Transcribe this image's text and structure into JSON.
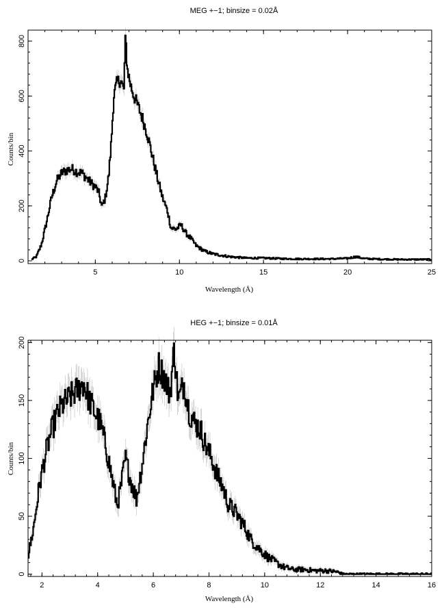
{
  "chart_data": [
    {
      "type": "line",
      "title": "MEG +−1; binsize = 0.02Å",
      "xlabel": "Wavelength (Å)",
      "ylabel": "Counts/bin",
      "xlim": [
        1.0,
        25.0
      ],
      "ylim": [
        -10,
        840
      ],
      "xticks": [
        5,
        10,
        15,
        20,
        25
      ],
      "yticks": [
        0,
        200,
        400,
        600,
        800
      ],
      "grid": false,
      "line_color": "#000000",
      "error_color": "#bbbbbb",
      "series": [
        {
          "x": [
            1.2,
            1.5,
            1.8,
            2.1,
            2.4,
            2.7,
            3.0,
            3.3,
            3.6,
            3.9,
            4.2,
            4.5,
            4.8,
            5.0,
            5.2,
            5.4,
            5.6,
            5.8,
            5.95,
            6.1,
            6.3,
            6.5,
            6.7,
            6.8,
            6.9,
            7.1,
            7.3,
            7.5,
            7.8,
            8.1,
            8.4,
            8.7,
            9.0,
            9.3,
            9.5,
            9.8,
            10.1,
            10.4,
            10.7,
            11.0,
            11.5,
            12.0,
            13.0,
            14.0,
            15.0,
            16.0,
            17.0,
            18.0,
            19.0,
            20.0,
            20.5,
            21.0,
            22.0,
            23.0,
            24.0,
            25.0
          ],
          "y": [
            5,
            15,
            60,
            140,
            230,
            290,
            320,
            330,
            335,
            325,
            320,
            300,
            280,
            270,
            250,
            195,
            230,
            310,
            430,
            600,
            650,
            660,
            620,
            820,
            700,
            640,
            600,
            570,
            520,
            460,
            380,
            300,
            230,
            180,
            120,
            115,
            130,
            100,
            80,
            55,
            35,
            25,
            15,
            10,
            10,
            8,
            7,
            7,
            7,
            9,
            15,
            8,
            6,
            5,
            5,
            5
          ]
        }
      ]
    },
    {
      "type": "line",
      "title": "HEG +−1; binsize = 0.01Å",
      "xlabel": "Wavelength (Å)",
      "ylabel": "Counts/bin",
      "xlim": [
        1.5,
        16.0
      ],
      "ylim": [
        -2,
        202
      ],
      "xticks": [
        2,
        4,
        6,
        8,
        10,
        12,
        14,
        16
      ],
      "yticks": [
        0,
        50,
        100,
        150,
        200
      ],
      "grid": false,
      "line_color": "#000000",
      "error_color": "#bbbbbb",
      "series": [
        {
          "x": [
            1.5,
            1.7,
            1.9,
            2.1,
            2.3,
            2.5,
            2.7,
            2.9,
            3.1,
            3.3,
            3.5,
            3.7,
            3.9,
            4.1,
            4.3,
            4.5,
            4.7,
            4.8,
            5.0,
            5.2,
            5.4,
            5.6,
            5.8,
            6.0,
            6.2,
            6.4,
            6.6,
            6.75,
            6.9,
            7.1,
            7.3,
            7.5,
            7.7,
            7.9,
            8.1,
            8.3,
            8.5,
            8.7,
            8.9,
            9.1,
            9.3,
            9.5,
            9.8,
            10.1,
            10.4,
            10.7,
            11.0,
            11.4,
            11.8,
            12.2,
            12.6,
            12.8,
            13.5,
            14.5,
            16.0
          ],
          "y": [
            15,
            40,
            75,
            100,
            120,
            135,
            145,
            150,
            155,
            160,
            165,
            150,
            140,
            130,
            110,
            85,
            60,
            70,
            100,
            80,
            65,
            95,
            130,
            160,
            180,
            170,
            155,
            195,
            150,
            165,
            140,
            130,
            125,
            110,
            100,
            85,
            75,
            60,
            55,
            48,
            40,
            30,
            22,
            15,
            10,
            6,
            4,
            4,
            3,
            3,
            2,
            0,
            0,
            0,
            0
          ]
        }
      ]
    }
  ]
}
